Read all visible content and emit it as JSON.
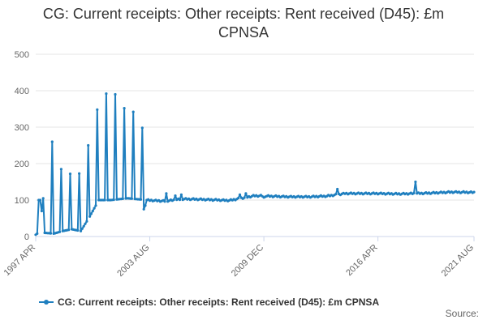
{
  "title": "CG: Current receipts: Other receipts: Rent received (D45): £m CPNSA",
  "source_label": "Source:",
  "colors": {
    "series": "#1f7fbf",
    "grid": "#e6e6e6",
    "axis": "#ccd6eb"
  },
  "chart_data": {
    "type": "line",
    "title": "CG: Current receipts: Other receipts: Rent received (D45): £m CPNSA",
    "xlabel": "",
    "ylabel": "",
    "ylim": [
      0,
      500
    ],
    "y_ticks": [
      "0",
      "100",
      "200",
      "300",
      "400",
      "500"
    ],
    "x_tick_labels": [
      "1997 APR",
      "2003 AUG",
      "2009 DEC",
      "2016 APR",
      "2021 AUG"
    ],
    "x_range": [
      "1997 APR",
      "2021 AUG"
    ],
    "grid": true,
    "legend_position": "bottom",
    "series": [
      {
        "name": "CG: Current receipts: Other receipts: Rent received (D45): £m CPNSA",
        "frequency": "monthly",
        "start": "1997 APR",
        "spike_points": [
          [
            "1997 JUN",
            100
          ],
          [
            "1997 SEP",
            105
          ],
          [
            "1998 MAR",
            260
          ],
          [
            "1998 SEP",
            185
          ],
          [
            "1999 MAR",
            172
          ],
          [
            "1999 SEP",
            173
          ],
          [
            "2000 MAR",
            250
          ],
          [
            "2000 SEP",
            348
          ],
          [
            "2001 MAR",
            392
          ],
          [
            "2001 SEP",
            390
          ],
          [
            "2002 MAR",
            352
          ],
          [
            "2002 SEP",
            342
          ],
          [
            "2003 MAR",
            298
          ],
          [
            "2003 APR",
            75
          ],
          [
            "2003 MAY",
            85
          ],
          [
            "2004 JUL",
            118
          ],
          [
            "2005 JAN",
            112
          ],
          [
            "2005 MAY",
            115
          ],
          [
            "2008 AUG",
            115
          ],
          [
            "2008 DEC",
            118
          ],
          [
            "2009 DEC",
            107
          ],
          [
            "2014 JAN",
            130
          ],
          [
            "2018 MAY",
            150
          ]
        ],
        "levels": [
          [
            "1997 APR",
            5
          ],
          [
            "1997 MAY",
            8
          ],
          [
            "1997 JUL",
            100
          ],
          [
            "1997 OCT",
            10
          ],
          [
            "1998 APR",
            8
          ],
          [
            "1998 OCT",
            15
          ],
          [
            "1999 APR",
            20
          ],
          [
            "1999 OCT",
            15
          ],
          [
            "2000 APR",
            55
          ],
          [
            "2000 OCT",
            100
          ],
          [
            "2001 JUN",
            100
          ],
          [
            "2002 MAY",
            105
          ],
          [
            "2003 JUN",
            100
          ],
          [
            "2004 JUN",
            97
          ],
          [
            "2005 JUN",
            103
          ],
          [
            "2006 JUN",
            102
          ],
          [
            "2008 JAN",
            99
          ],
          [
            "2009 JUN",
            112
          ],
          [
            "2011 JUN",
            109
          ],
          [
            "2012 JUN",
            109
          ],
          [
            "2013 JUN",
            111
          ],
          [
            "2014 JUN",
            118
          ],
          [
            "2016 APR",
            118
          ],
          [
            "2017 JUN",
            117
          ],
          [
            "2019 JAN",
            119
          ],
          [
            "2020 JUN",
            122
          ],
          [
            "2021 AUG",
            121
          ]
        ]
      }
    ]
  }
}
